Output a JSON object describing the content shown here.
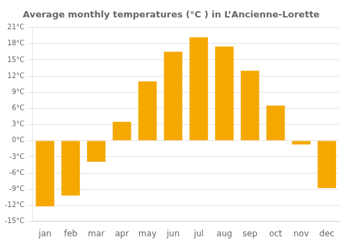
{
  "chart_data": {
    "type": "bar",
    "title": "Average monthly temperatures (°C ) in L’Ancienne-Lorette",
    "categories": [
      "jan",
      "feb",
      "mar",
      "apr",
      "may",
      "jun",
      "jul",
      "aug",
      "sep",
      "oct",
      "nov",
      "dec"
    ],
    "values": [
      -12.2,
      -10.2,
      -3.9,
      3.5,
      11.0,
      16.5,
      19.2,
      17.5,
      13.0,
      6.5,
      -0.7,
      -8.8
    ],
    "color": "#F5A800",
    "ylim": [
      -15,
      21
    ],
    "yticks": [
      {
        "value": -15,
        "label": "-15°C"
      },
      {
        "value": -12,
        "label": "-12°C"
      },
      {
        "value": -9,
        "label": "-9°C"
      },
      {
        "value": -6,
        "label": "-6°C"
      },
      {
        "value": -3,
        "label": "-3°C"
      },
      {
        "value": 0,
        "label": "0°C"
      },
      {
        "value": 3,
        "label": "3°C"
      },
      {
        "value": 6,
        "label": "6°C"
      },
      {
        "value": 9,
        "label": "9°C"
      },
      {
        "value": 12,
        "label": "12°C"
      },
      {
        "value": 15,
        "label": "15°C"
      },
      {
        "value": 18,
        "label": "18°C"
      },
      {
        "value": 21,
        "label": "21°C"
      }
    ],
    "grid": true
  }
}
